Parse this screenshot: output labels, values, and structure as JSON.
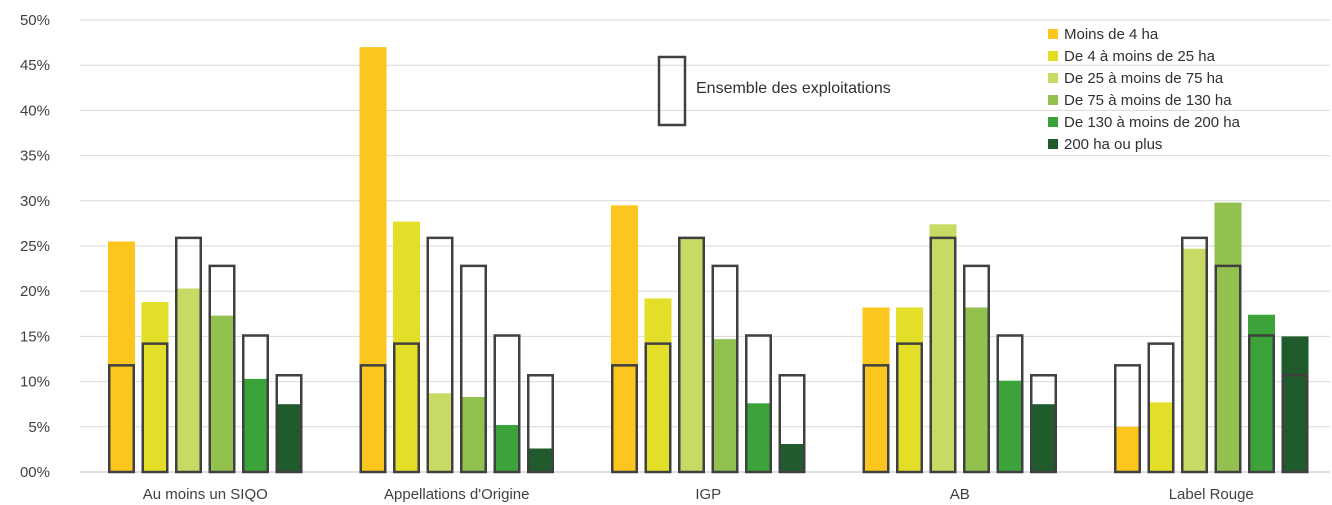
{
  "chart_data": {
    "type": "bar",
    "title": "",
    "xlabel": "",
    "ylabel": "",
    "ylim": [
      0,
      50
    ],
    "yticks": [
      0,
      5,
      10,
      15,
      20,
      25,
      30,
      35,
      40,
      45,
      50
    ],
    "ytick_labels": [
      "00%",
      "5%",
      "10%",
      "15%",
      "20%",
      "25%",
      "30%",
      "35%",
      "40%",
      "45%",
      "50%"
    ],
    "grid": true,
    "legend_position": "top-right",
    "categories": [
      "Au moins un SIQO",
      "Appellations d'Origine",
      "IGP",
      "AB",
      "Label Rouge"
    ],
    "series": [
      {
        "name": "Moins de 4 ha",
        "color": "#FCC61F",
        "values": [
          25.5,
          47,
          29.5,
          18.2,
          5
        ]
      },
      {
        "name": "De 4 à moins de 25 ha",
        "color": "#E3DE28",
        "values": [
          18.8,
          27.7,
          19.2,
          18.2,
          7.7
        ]
      },
      {
        "name": "De 25 à moins de 75 ha",
        "color": "#C8D964",
        "values": [
          20.3,
          8.7,
          25.8,
          27.4,
          24.7
        ]
      },
      {
        "name": "De 75 à moins de 130 ha",
        "color": "#92C150",
        "values": [
          17.3,
          8.3,
          14.7,
          18.2,
          29.8
        ]
      },
      {
        "name": "De 130 à moins de 200 ha",
        "color": "#3CA33A",
        "values": [
          10.3,
          5.2,
          7.6,
          10.1,
          17.4
        ]
      },
      {
        "name": "200 ha ou plus",
        "color": "#1F5B2C",
        "values": [
          7.5,
          2.6,
          3.1,
          7.5,
          15
        ]
      }
    ],
    "ensemble": {
      "name": "Ensemble des exploitations",
      "values": [
        11.8,
        14.2,
        25.9,
        22.8,
        15.1,
        10.7
      ]
    }
  }
}
